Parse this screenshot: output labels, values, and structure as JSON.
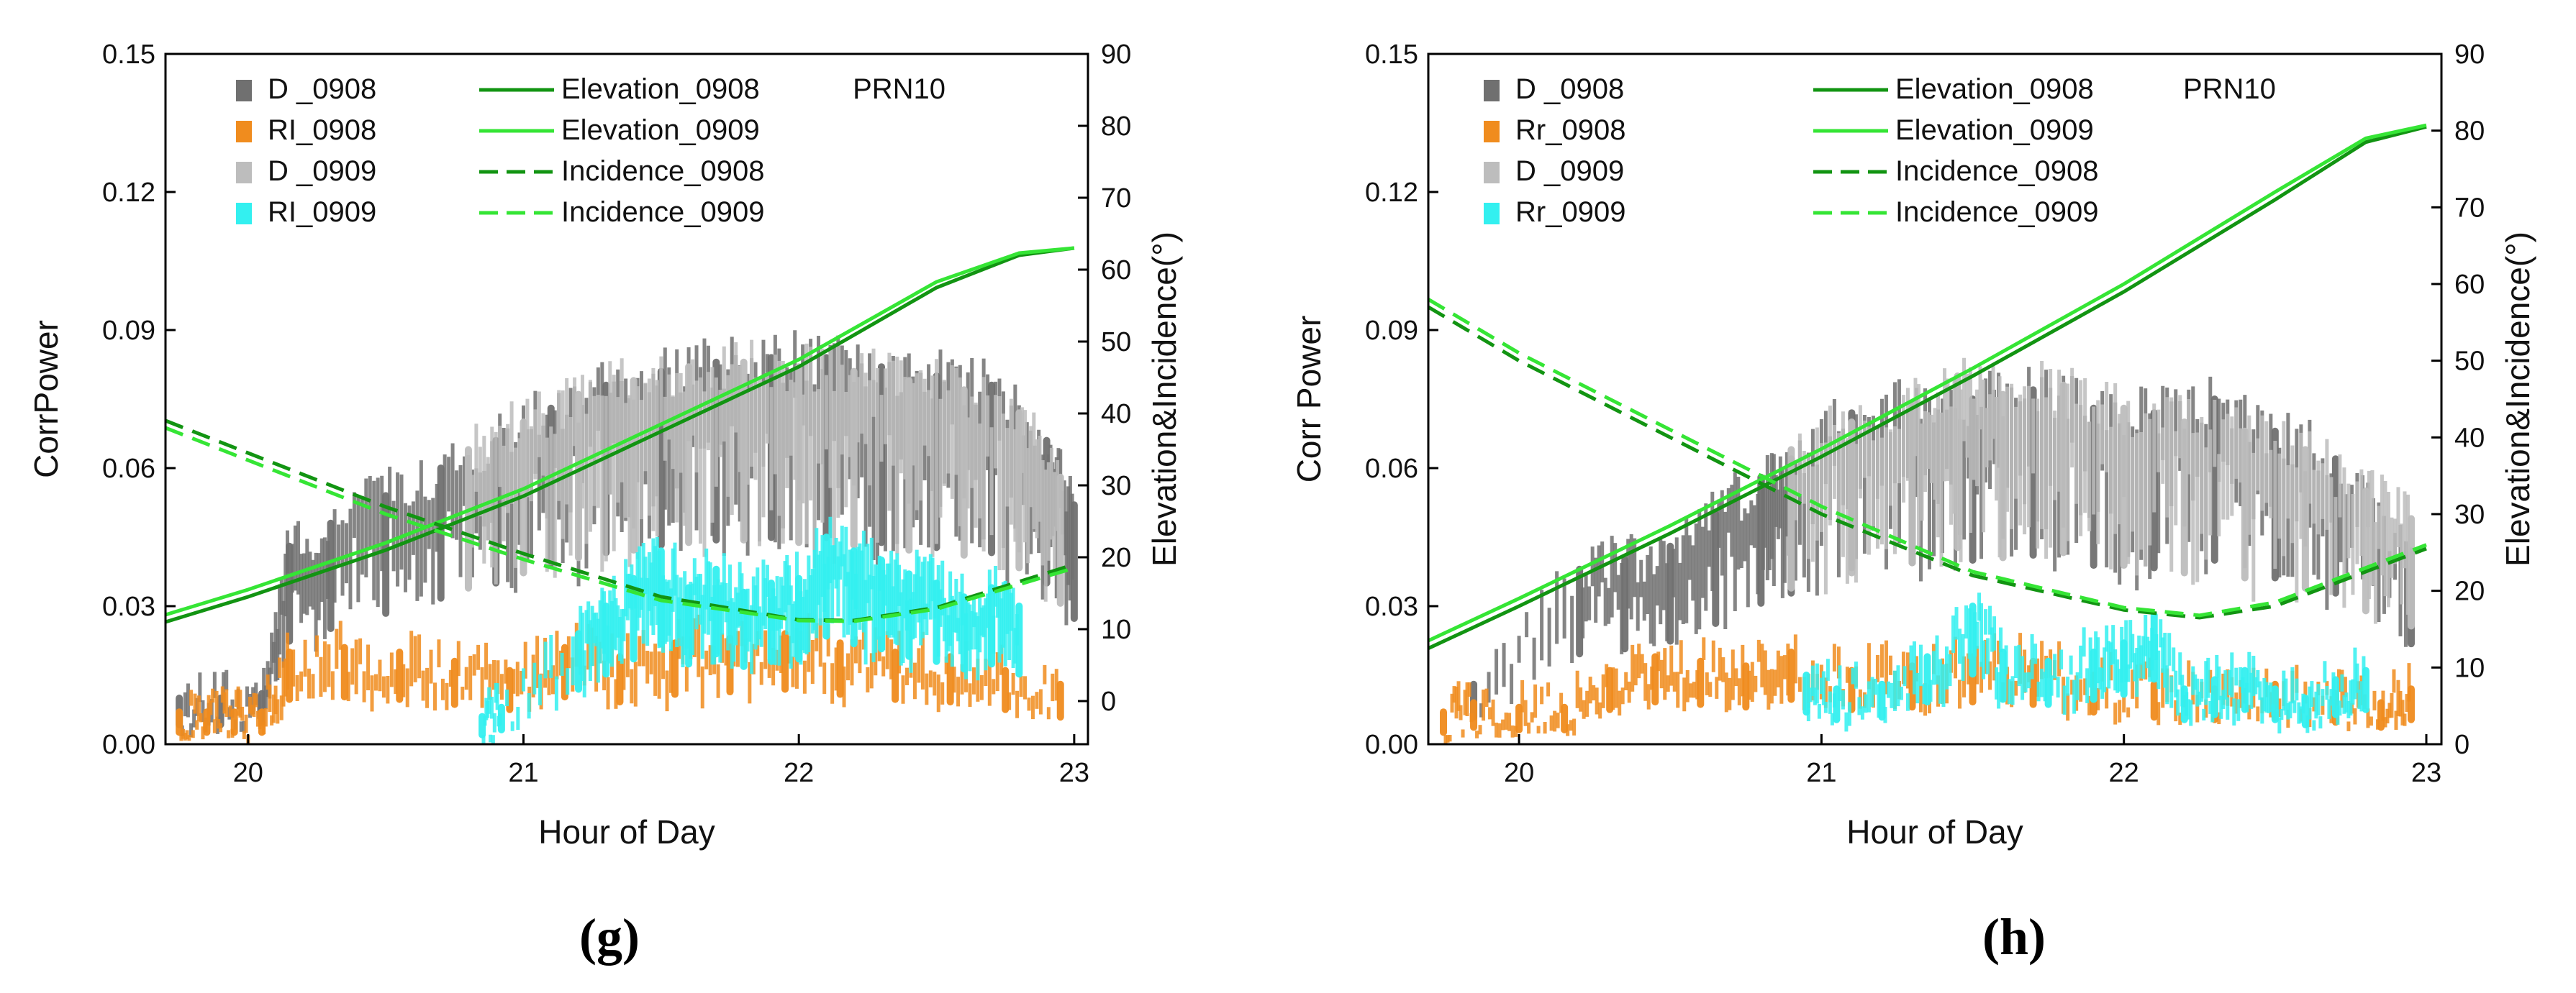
{
  "chart_data": [
    {
      "type": "scatter",
      "panel_label": "(g)",
      "annotation": "PRN10",
      "xlabel": "Hour of Day",
      "ylabel": "CorrPower",
      "y2label": "Elevation&Incidence(°)",
      "xlim": [
        19.7,
        23.05
      ],
      "ylim": [
        0.0,
        0.15
      ],
      "y2lim": [
        -6.0,
        90.0
      ],
      "xticks": [
        "20",
        "21",
        "22",
        "23"
      ],
      "yticks": [
        "0.00",
        "0.03",
        "0.06",
        "0.09",
        "0.12",
        "0.15"
      ],
      "y2ticks": [
        "0",
        "10",
        "20",
        "30",
        "40",
        "50",
        "60",
        "70",
        "80",
        "90"
      ],
      "legend": {
        "placement": "top-left",
        "left_col": [
          {
            "name": "D _0908",
            "color": "#707070",
            "marker": "square"
          },
          {
            "name": "RI_0908",
            "color": "#f08c1e",
            "marker": "square"
          },
          {
            "name": "D _0909",
            "color": "#bdbdbd",
            "marker": "square"
          },
          {
            "name": "RI_0909",
            "color": "#33f0f0",
            "marker": "square"
          }
        ],
        "right_col": [
          {
            "name": "Elevation_0908",
            "color": "#129412",
            "dash": "solid"
          },
          {
            "name": "Elevation_0909",
            "color": "#35e535",
            "dash": "solid"
          },
          {
            "name": "Incidence_0908",
            "color": "#129412",
            "dash": "dashed"
          },
          {
            "name": "Incidence_0909",
            "color": "#35e535",
            "dash": "dashed"
          }
        ]
      },
      "series": [
        {
          "name": "D _0908",
          "axis": "left",
          "kind": "scatter-band",
          "color": "#707070",
          "x": [
            19.75,
            19.9,
            20.05,
            20.15,
            20.3,
            20.5,
            20.7,
            20.9,
            21.1,
            21.3,
            21.5,
            21.7,
            21.9,
            22.1,
            22.3,
            22.5,
            22.7,
            22.9,
            23.0
          ],
          "values": [
            0.01,
            0.01,
            0.011,
            0.043,
            0.048,
            0.054,
            0.06,
            0.066,
            0.073,
            0.078,
            0.081,
            0.083,
            0.084,
            0.084,
            0.082,
            0.08,
            0.078,
            0.066,
            0.052
          ]
        },
        {
          "name": "D _0909",
          "axis": "left",
          "kind": "scatter-band",
          "color": "#bdbdbd",
          "x": [
            20.8,
            21.0,
            21.2,
            21.4,
            21.6,
            21.8,
            22.0,
            22.2,
            22.4,
            22.6,
            22.8,
            22.95
          ],
          "values": [
            0.064,
            0.07,
            0.076,
            0.079,
            0.082,
            0.083,
            0.082,
            0.081,
            0.079,
            0.077,
            0.072,
            0.058
          ]
        },
        {
          "name": "RI_0908",
          "axis": "left",
          "kind": "scatter-band",
          "color": "#f08c1e",
          "x": [
            19.75,
            19.85,
            19.95,
            20.05,
            20.15,
            20.35,
            20.55,
            20.75,
            20.95,
            21.15,
            21.35,
            21.55,
            21.75,
            21.95,
            22.15,
            22.35,
            22.55,
            22.75,
            22.95
          ],
          "values": [
            0.007,
            0.007,
            0.007,
            0.007,
            0.02,
            0.021,
            0.02,
            0.018,
            0.016,
            0.021,
            0.019,
            0.022,
            0.023,
            0.024,
            0.022,
            0.02,
            0.019,
            0.016,
            0.013
          ]
        },
        {
          "name": "RI_0909",
          "axis": "left",
          "kind": "scatter-band",
          "color": "#33f0f0",
          "x": [
            20.85,
            20.92,
            21.2,
            21.3,
            21.4,
            21.5,
            21.6,
            21.7,
            21.8,
            21.9,
            22.0,
            22.1,
            22.2,
            22.3,
            22.4,
            22.5,
            22.6,
            22.7,
            22.8
          ],
          "values": [
            0.006,
            0.008,
            0.024,
            0.03,
            0.036,
            0.042,
            0.034,
            0.038,
            0.033,
            0.035,
            0.036,
            0.045,
            0.042,
            0.04,
            0.037,
            0.035,
            0.032,
            0.034,
            0.03
          ]
        },
        {
          "name": "Elevation_0908",
          "axis": "right",
          "kind": "line",
          "color": "#129412",
          "dash": "solid",
          "x": [
            19.7,
            20.0,
            20.5,
            21.0,
            21.5,
            22.0,
            22.5,
            22.8,
            23.0
          ],
          "values": [
            11,
            14.5,
            21,
            28.5,
            37.5,
            46.5,
            57.5,
            62,
            63
          ]
        },
        {
          "name": "Elevation_0909",
          "axis": "right",
          "kind": "line",
          "color": "#35e535",
          "dash": "solid",
          "x": [
            19.7,
            20.0,
            20.5,
            21.0,
            21.5,
            22.0,
            22.5,
            22.8,
            23.0
          ],
          "values": [
            12,
            15.5,
            22,
            29.5,
            38.5,
            47.5,
            58.3,
            62.3,
            63
          ]
        },
        {
          "name": "Incidence_0908",
          "axis": "right",
          "kind": "line",
          "color": "#129412",
          "dash": "dashed",
          "x": [
            19.7,
            20.0,
            20.5,
            21.0,
            21.5,
            22.0,
            22.2,
            22.5,
            23.0
          ],
          "values": [
            39,
            34.5,
            27,
            20.5,
            14.5,
            11.3,
            11.2,
            13,
            19
          ]
        },
        {
          "name": "Incidence_0909",
          "axis": "right",
          "kind": "line",
          "color": "#35e535",
          "dash": "dashed",
          "x": [
            19.7,
            20.0,
            20.5,
            21.0,
            21.5,
            22.0,
            22.2,
            22.5,
            23.0
          ],
          "values": [
            38,
            33.5,
            26,
            19.7,
            14,
            11.2,
            11.1,
            12.8,
            18.5
          ]
        }
      ]
    },
    {
      "type": "scatter",
      "panel_label": "(h)",
      "annotation": "PRN10",
      "xlabel": "Hour of Day",
      "ylabel": "Corr Power",
      "y2label": "Elevation&Incidence(°)",
      "xlim": [
        19.7,
        23.05
      ],
      "ylim": [
        0.0,
        0.15
      ],
      "y2lim": [
        0.0,
        90.0
      ],
      "xticks": [
        "20",
        "21",
        "22",
        "23"
      ],
      "yticks": [
        "0.00",
        "0.03",
        "0.06",
        "0.09",
        "0.12",
        "0.15"
      ],
      "y2ticks": [
        "0",
        "10",
        "20",
        "30",
        "40",
        "50",
        "60",
        "70",
        "80",
        "90"
      ],
      "legend": {
        "placement": "top-left",
        "left_col": [
          {
            "name": "D _0908",
            "color": "#707070",
            "marker": "square"
          },
          {
            "name": "Rr_0908",
            "color": "#f08c1e",
            "marker": "square"
          },
          {
            "name": "D _0909",
            "color": "#bdbdbd",
            "marker": "square"
          },
          {
            "name": "Rr_0909",
            "color": "#33f0f0",
            "marker": "square"
          }
        ],
        "right_col": [
          {
            "name": "Elevation_0908",
            "color": "#129412",
            "dash": "solid"
          },
          {
            "name": "Elevation_0909",
            "color": "#35e535",
            "dash": "solid"
          },
          {
            "name": "Incidence_0908",
            "color": "#129412",
            "dash": "dashed"
          },
          {
            "name": "Incidence_0909",
            "color": "#35e535",
            "dash": "dashed"
          }
        ]
      },
      "series": [
        {
          "name": "D _0908",
          "axis": "left",
          "kind": "scatter-band",
          "color": "#707070",
          "x": [
            19.85,
            20.2,
            20.35,
            20.5,
            20.65,
            20.8,
            20.9,
            21.1,
            21.3,
            21.5,
            21.7,
            21.9,
            22.1,
            22.3,
            22.5,
            22.7,
            22.95
          ],
          "values": [
            0.013,
            0.038,
            0.04,
            0.043,
            0.05,
            0.058,
            0.062,
            0.072,
            0.074,
            0.075,
            0.077,
            0.073,
            0.072,
            0.075,
            0.068,
            0.062,
            0.042
          ]
        },
        {
          "name": "D _0909",
          "axis": "left",
          "kind": "scatter-band",
          "color": "#bdbdbd",
          "x": [
            20.9,
            21.1,
            21.3,
            21.45,
            21.6,
            21.8,
            22.0,
            22.2,
            22.4,
            22.6,
            22.8,
            22.95
          ],
          "values": [
            0.064,
            0.07,
            0.074,
            0.08,
            0.076,
            0.078,
            0.073,
            0.07,
            0.068,
            0.064,
            0.055,
            0.049
          ]
        },
        {
          "name": "Rr_0908",
          "axis": "left",
          "kind": "scatter-band",
          "color": "#f08c1e",
          "x": [
            19.75,
            19.85,
            20.0,
            20.15,
            20.3,
            20.45,
            20.6,
            20.75,
            20.9,
            21.1,
            21.3,
            21.5,
            21.7,
            21.9,
            22.1,
            22.3,
            22.5,
            22.7,
            22.85,
            22.95
          ],
          "values": [
            0.007,
            0.009,
            0.008,
            0.008,
            0.016,
            0.019,
            0.018,
            0.017,
            0.02,
            0.016,
            0.017,
            0.019,
            0.018,
            0.015,
            0.013,
            0.012,
            0.013,
            0.011,
            0.009,
            0.012
          ]
        },
        {
          "name": "Rr_0909",
          "axis": "left",
          "kind": "scatter-band",
          "color": "#33f0f0",
          "x": [
            20.95,
            21.05,
            21.2,
            21.35,
            21.5,
            21.6,
            21.75,
            21.9,
            22.0,
            22.1,
            22.2,
            22.3,
            22.4,
            22.5,
            22.6,
            22.7,
            22.8
          ],
          "values": [
            0.015,
            0.012,
            0.013,
            0.019,
            0.03,
            0.02,
            0.018,
            0.02,
            0.022,
            0.028,
            0.012,
            0.014,
            0.016,
            0.012,
            0.01,
            0.014,
            0.016
          ]
        },
        {
          "name": "Elevation_0908",
          "axis": "right",
          "kind": "line",
          "color": "#129412",
          "dash": "solid",
          "x": [
            19.7,
            20.0,
            20.5,
            21.0,
            21.5,
            22.0,
            22.5,
            22.8,
            23.0
          ],
          "values": [
            12.5,
            18,
            27.5,
            37.5,
            48,
            59,
            71,
            78.5,
            80.5
          ]
        },
        {
          "name": "Elevation_0909",
          "axis": "right",
          "kind": "line",
          "color": "#35e535",
          "dash": "solid",
          "x": [
            19.7,
            20.0,
            20.5,
            21.0,
            21.5,
            22.0,
            22.5,
            22.8,
            23.0
          ],
          "values": [
            13.5,
            19,
            28.5,
            38.5,
            49,
            60,
            72,
            79,
            80.7
          ]
        },
        {
          "name": "Incidence_0908",
          "axis": "right",
          "kind": "line",
          "color": "#129412",
          "dash": "dashed",
          "x": [
            19.7,
            20.0,
            20.5,
            21.0,
            21.5,
            22.0,
            22.25,
            22.5,
            23.0
          ],
          "values": [
            57,
            50,
            40,
            30,
            22,
            17.5,
            16.5,
            18,
            25.5
          ]
        },
        {
          "name": "Incidence_0909",
          "axis": "right",
          "kind": "line",
          "color": "#35e535",
          "dash": "dashed",
          "x": [
            19.7,
            20.0,
            20.5,
            21.0,
            21.5,
            22.0,
            22.25,
            22.5,
            23.0
          ],
          "values": [
            58,
            51,
            41,
            31,
            22.5,
            17.8,
            16.8,
            18.5,
            26
          ]
        }
      ]
    }
  ]
}
